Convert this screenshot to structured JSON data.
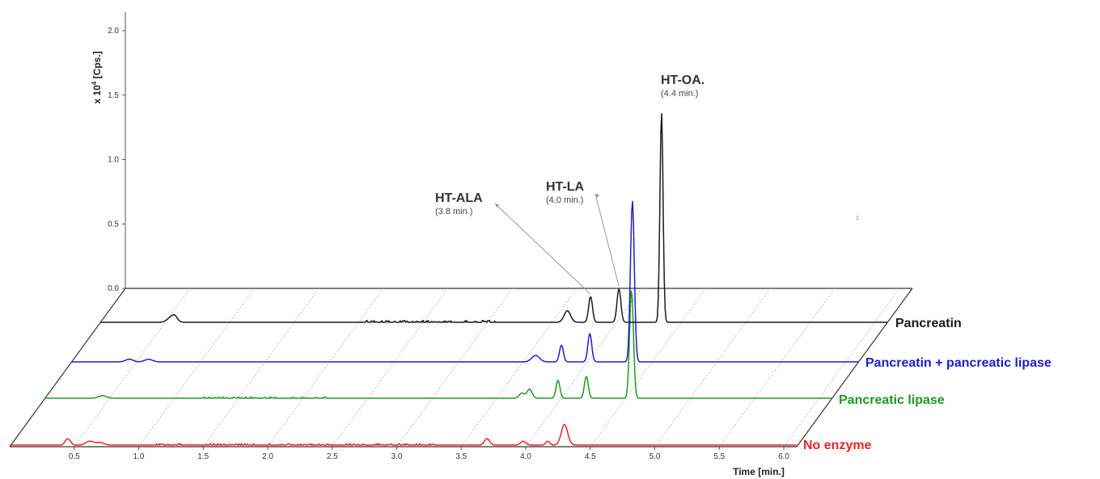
{
  "chart_data": {
    "type": "line",
    "layout": "3d-stacked-chromatograms",
    "xlabel": "Time [min.]",
    "ylabel_prefix": "x 10",
    "ylabel_exp": "4",
    "ylabel_suffix": " [Cps.]",
    "xlim": [
      0,
      6.1
    ],
    "ylim": [
      0,
      2.1
    ],
    "x_ticks": [
      "0.5",
      "1.0",
      "1.5",
      "2.0",
      "2.5",
      "3.0",
      "3.5",
      "4.0",
      "4.5",
      "5.0",
      "5.5",
      "6.0"
    ],
    "y_ticks": [
      "0.0",
      "0.5",
      "1.0",
      "1.5",
      "2.0"
    ],
    "stray_mark": "1",
    "series": [
      {
        "name": "No enzyme",
        "color": "#e8232b",
        "baseline": 0.02,
        "peaks": [
          [
            0.45,
            0.05,
            0.02
          ],
          [
            0.62,
            0.03,
            0.03
          ],
          [
            0.7,
            0.02,
            0.03
          ],
          [
            3.7,
            0.05,
            0.02
          ],
          [
            3.98,
            0.03,
            0.02
          ],
          [
            4.17,
            0.03,
            0.015
          ],
          [
            4.3,
            0.16,
            0.025
          ]
        ],
        "noise": [
          [
            1.1,
            3.3,
            0.004
          ]
        ]
      },
      {
        "name": "Pancreatic lipase",
        "color": "#1f9a1f",
        "baseline": 0.02,
        "peaks": [
          [
            0.45,
            0.02,
            0.03
          ],
          [
            3.7,
            0.04,
            0.02
          ],
          [
            3.76,
            0.07,
            0.02
          ],
          [
            3.98,
            0.14,
            0.015
          ],
          [
            4.2,
            0.17,
            0.015
          ],
          [
            4.55,
            0.84,
            0.015
          ]
        ],
        "noise": [
          [
            1.2,
            2.2,
            0.004
          ]
        ]
      },
      {
        "name": "Pancreatin + pancreatic lipase",
        "color": "#1e1ec8",
        "baseline": 0.02,
        "peaks": [
          [
            0.45,
            0.02,
            0.03
          ],
          [
            0.6,
            0.02,
            0.03
          ],
          [
            3.6,
            0.05,
            0.03
          ],
          [
            3.8,
            0.13,
            0.015
          ],
          [
            4.02,
            0.22,
            0.015
          ],
          [
            4.35,
            1.25,
            0.015
          ]
        ],
        "noise": []
      },
      {
        "name": "Pancreatin",
        "color": "#1a1a1a",
        "baseline": 0.0,
        "peaks": [
          [
            0.55,
            0.04,
            0.03
          ],
          [
            0.58,
            0.03,
            0.02
          ],
          [
            3.62,
            0.09,
            0.025
          ],
          [
            3.8,
            0.2,
            0.015
          ],
          [
            4.02,
            0.26,
            0.015
          ],
          [
            4.35,
            1.63,
            0.012
          ]
        ],
        "noise": [
          [
            2.0,
            3.1,
            0.005
          ]
        ]
      }
    ],
    "annotations": [
      {
        "name": "HT-ALA",
        "time": "(3.8 min.)",
        "target_x": 3.8
      },
      {
        "name": "HT-LA",
        "time": "(4.0 min.)",
        "target_x": 4.02
      },
      {
        "name": "HT-OA.",
        "time": "(4.4 min.)",
        "target_x": 4.35
      }
    ]
  }
}
